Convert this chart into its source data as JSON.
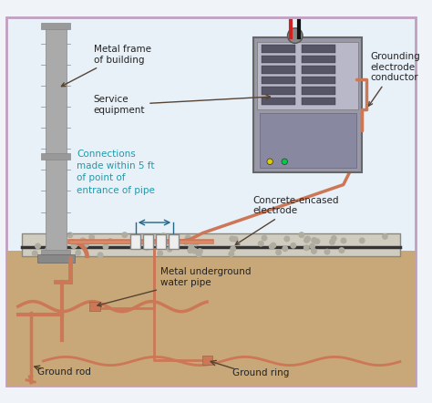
{
  "bg_color": "#f0f4f8",
  "border_color": "#c0a0c0",
  "sky_color": "#e8f0f8",
  "ground_color": "#c8a878",
  "concrete_color": "#d0ccc0",
  "copper_color": "#cc7755",
  "steel_color": "#9090a0",
  "panel_color": "#9898a8",
  "text_color": "#222222",
  "cyan_color": "#2299aa",
  "arrow_color": "#554433",
  "labels": {
    "metal_frame": "Metal frame\nof building",
    "service_equipment": "Service\nequipment",
    "grounding_conductor": "Grounding\nelectrode\nconductor",
    "connections": "Connections\nmade within 5 ft\nof point of\nentrance of pipe",
    "concrete_electrode": "Concrete-encased\nelectrode",
    "underground_pipe": "Metal underground\nwater pipe",
    "ground_rod": "Ground rod",
    "ground_ring": "Ground ring"
  }
}
